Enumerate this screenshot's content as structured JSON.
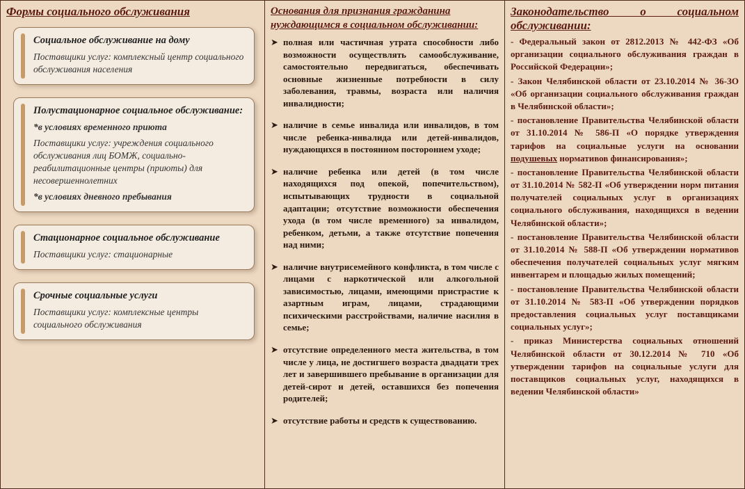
{
  "colors": {
    "background": "#edd9c2",
    "box_bg": "#f5ece1",
    "box_border": "#9a7a5a",
    "accent": "#5a1a10",
    "text": "#2a1a10"
  },
  "col1": {
    "title": "Формы социального обслуживания",
    "boxes": [
      {
        "title": "Социальное обслуживание на дому",
        "lines": [
          {
            "text": "Поставщики услуг: комплексный центр социального обслуживания населения",
            "em": false
          }
        ]
      },
      {
        "title": "Полустационарное социальное обслуживание:",
        "lines": [
          {
            "text": "*в условиях временного приюта",
            "em": true
          },
          {
            "text": "Поставщики услуг: учреждения социального обслуживания лиц БОМЖ, социально-реабилитационные центры (приюты) для несовершеннолетних",
            "em": false
          },
          {
            "text": "*в условиях дневного пребывания",
            "em": true
          }
        ]
      },
      {
        "title": "Стационарное социальное обслуживание",
        "lines": [
          {
            "text": "Поставщики услуг: стационарные",
            "em": false
          }
        ]
      },
      {
        "title": "Срочные социальные услуги",
        "lines": [
          {
            "text": "Поставщики услуг: комплексные центры социального обслуживания",
            "em": false
          }
        ]
      }
    ]
  },
  "col2": {
    "title": "Основания для признания гражданина нуждающимся в социальном обслуживании:",
    "items": [
      "полная или частичная утрата способности либо возможности осуществлять самообслуживание, самостоятельно передвигаться, обеспечивать основные жизненные потребности в силу заболевания, травмы, возраста или наличия инвалидности;",
      "наличие в семье инвалида или инвалидов, в том числе ребенка-инвалида или детей-инвалидов, нуждающихся в постоянном постороннем уходе;",
      "наличие ребенка или детей (в том числе находящихся под опекой, попечительством), испытывающих трудности в социальной адаптации; отсутствие возможности обеспечения ухода (в том числе временного) за инвалидом, ребенком, детьми, а также отсутствие попечения над ними;",
      "наличие внутрисемейного конфликта, в том числе с лицами с наркотической или алкогольной зависимостью, лицами, имеющими пристрастие к азартным играм, лицами, страдающими психическими расстройствами, наличие насилия в семье;",
      "отсутствие определенного места жительства, в том числе у лица, не достигшего возраста двадцати трех лет и завершившего пребывание в организации для детей-сирот и детей, оставшихся без попечения родителей;",
      "отсутствие работы и средств к существованию."
    ]
  },
  "col3": {
    "title": "Законодательство о социальном обслуживании:",
    "items": [
      "- Федеральный закон от 2812.2013 № 442-ФЗ «Об организации социального обслуживания граждан в Российской Федерации»;",
      "- Закон Челябинской области от 23.10.2014 № 36-ЗО «Об организации социального обслуживания граждан в Челябинской области»;",
      "- постановление Правительства Челябинской области от 31.10.2014 № 586-П «О порядке утверждения тарифов на социальные услуги на основании <span class=\"u\">подушевых</span> нормативов финансирования»;",
      "- постановление Правительства Челябинской области от 31.10.2014 № 582-П «Об утверждении норм питания получателей социальных услуг в организациях социального обслуживания, находящихся в ведении Челябинской области»;",
      "- постановление Правительства Челябинской области от 31.10.2014 № 588-П «Об утверждении нормативов обеспечения получателей социальных услуг мягким инвентарем и площадью жилых помещений;",
      "- постановление Правительства Челябинской области от 31.10.2014 № 583-П «Об утверждении порядков предоставления социальных услуг поставщиками социальных услуг»;",
      "- приказ Министерства социальных отношений Челябинской области от 30.12.2014 № 710 «Об утверждении тарифов на социальные услуги для поставщиков социальных услуг, находящихся в ведении Челябинской области»"
    ]
  }
}
